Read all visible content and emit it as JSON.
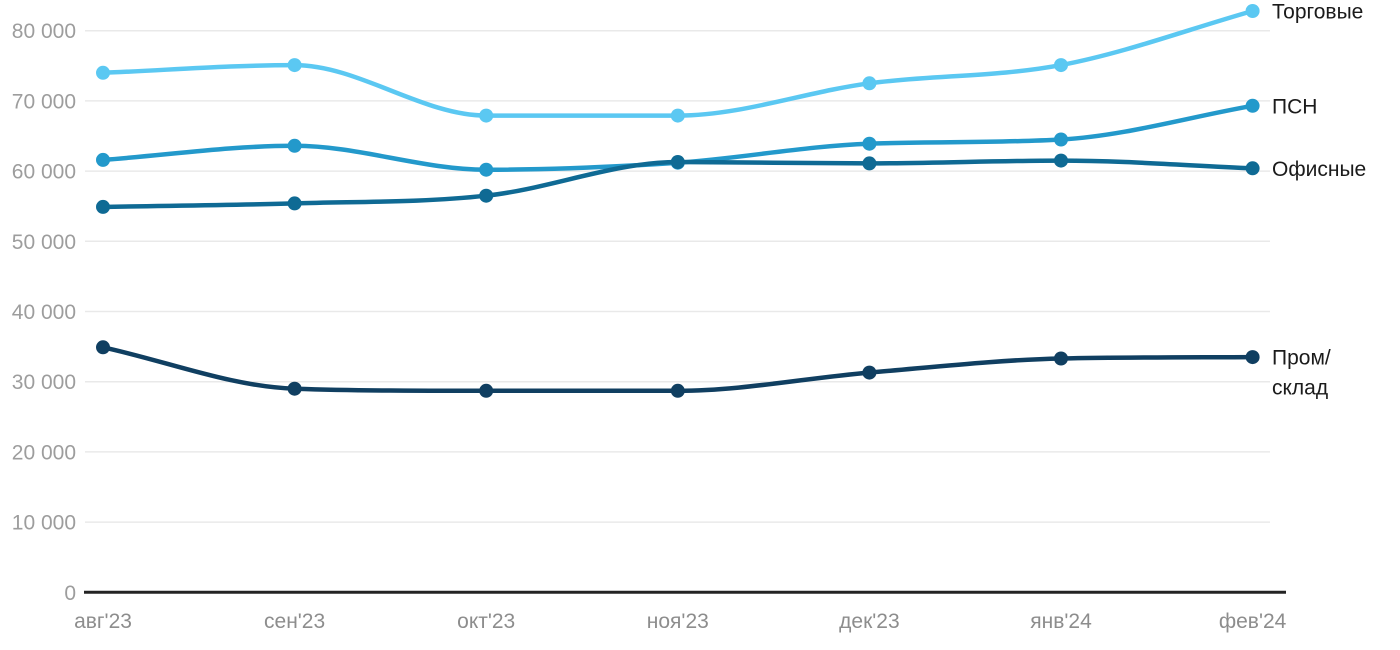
{
  "chart_data": {
    "type": "line",
    "title": "",
    "categories": [
      "авг'23",
      "сен'23",
      "окт'23",
      "ноя'23",
      "дек'23",
      "янв'24",
      "фев'24"
    ],
    "series": [
      {
        "name": "Торговые",
        "label_lines": [
          "Торговые"
        ],
        "color": "#5bc8f2",
        "values": [
          74000,
          75100,
          67900,
          67900,
          72500,
          75100,
          82800
        ]
      },
      {
        "name": "ПСН",
        "label_lines": [
          "ПСН"
        ],
        "color": "#2399cb",
        "values": [
          61600,
          63600,
          60200,
          61200,
          63900,
          64500,
          69300
        ]
      },
      {
        "name": "Офисные",
        "label_lines": [
          "Офисные"
        ],
        "color": "#0f6a94",
        "values": [
          54900,
          55400,
          56500,
          61300,
          61100,
          61500,
          60400
        ]
      },
      {
        "name": "Пром/склад",
        "label_lines": [
          "Пром/",
          "склад"
        ],
        "color": "#103f61",
        "values": [
          34900,
          29000,
          28700,
          28700,
          31300,
          33300,
          33500
        ]
      }
    ],
    "y_axis": {
      "min": 0,
      "max": 80000,
      "tick_step": 10000,
      "tick_values": [
        0,
        10000,
        20000,
        30000,
        40000,
        50000,
        60000,
        70000,
        80000
      ],
      "tick_labels": [
        "0",
        "10 000",
        "20 000",
        "30 000",
        "40 000",
        "50 000",
        "60 000",
        "70 000",
        "80 000"
      ]
    },
    "grid": "horizontal",
    "legend_position": "right-of-line-end",
    "curve": "monotone",
    "colors": {
      "background": "#ffffff",
      "grid": "#e9e9e9",
      "axis": "#232323",
      "y_tick_text": "#9d9d9d",
      "x_tick_text": "#8d8d8d",
      "series_label_text": "#1b1b1b"
    }
  }
}
